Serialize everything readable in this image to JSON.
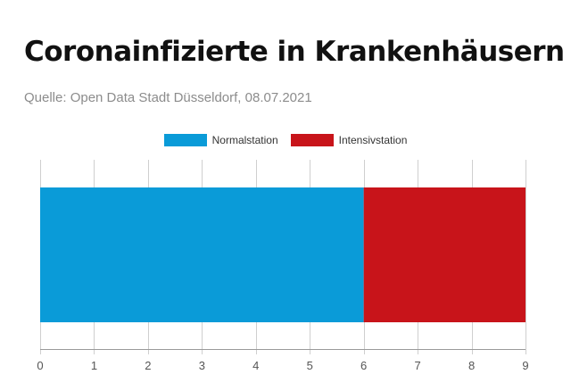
{
  "header": {
    "title": "Coronainfizierte in Krankenhäusern",
    "source": "Quelle: Open Data Stadt Düsseldorf, 08.07.2021"
  },
  "colors": {
    "normal": "#0a9bd8",
    "intensive": "#c8141a",
    "grid": "#cfcfcf",
    "axis": "#9a9a9a"
  },
  "chart_data": {
    "type": "bar",
    "orientation": "horizontal",
    "stacked": true,
    "categories": [
      ""
    ],
    "series": [
      {
        "name": "Normalstation",
        "values": [
          6
        ]
      },
      {
        "name": "Intensivstation",
        "values": [
          3
        ]
      }
    ],
    "title": "Coronainfizierte in Krankenhäusern",
    "xlabel": "",
    "ylabel": "",
    "xlim": [
      0,
      9
    ],
    "xticks": [
      "0",
      "1",
      "2",
      "3",
      "4",
      "5",
      "6",
      "7",
      "8",
      "9"
    ],
    "grid": true,
    "legend": "top-center"
  }
}
